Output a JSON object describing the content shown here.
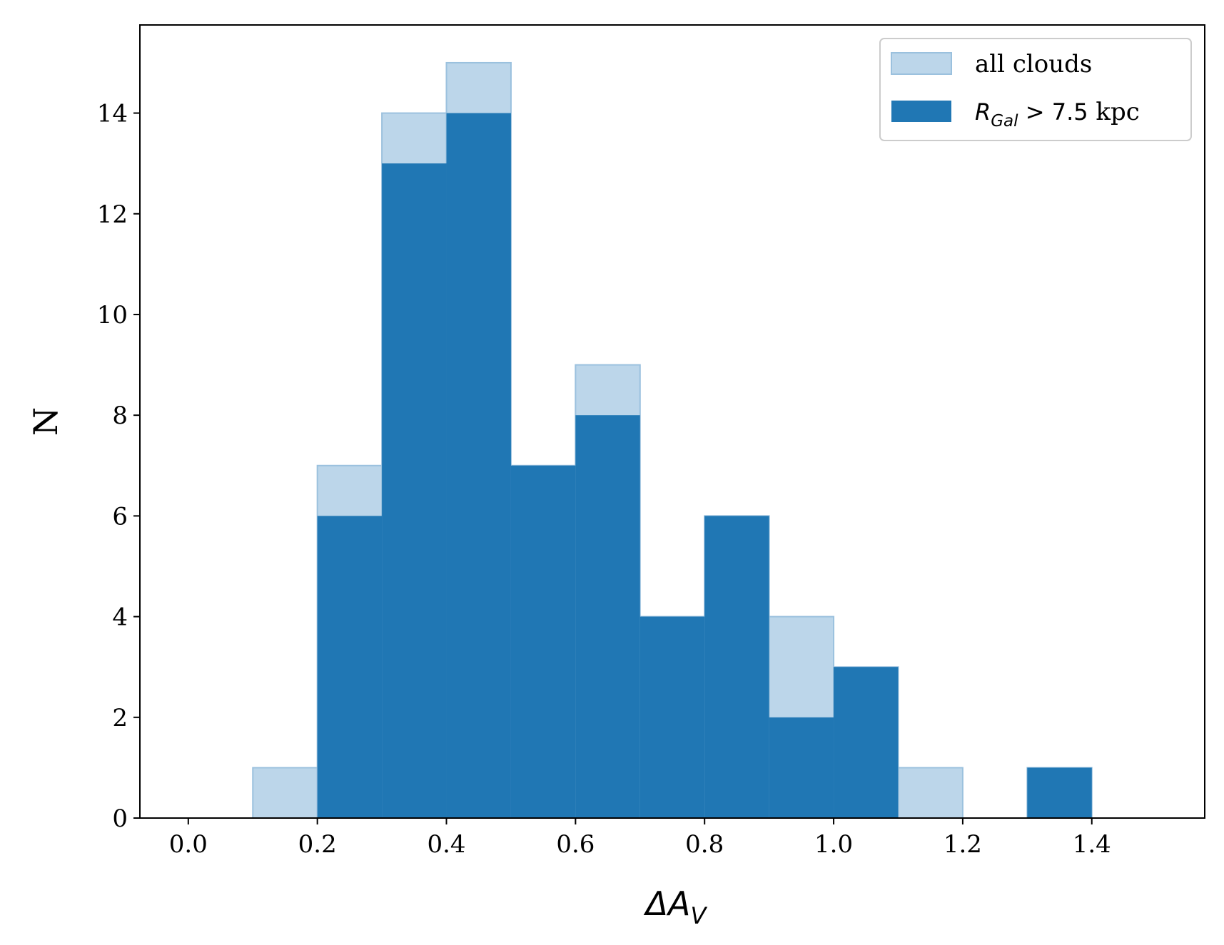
{
  "chart_data": {
    "type": "bar",
    "subtype": "histogram",
    "bin_edges": [
      0.0,
      0.1,
      0.2,
      0.3,
      0.4,
      0.5,
      0.6,
      0.7,
      0.8,
      0.9,
      1.0,
      1.1,
      1.2,
      1.3,
      1.4,
      1.5
    ],
    "series": [
      {
        "name": "all clouds",
        "color": "#bcd6ea",
        "edge_color": "#9bc1de",
        "values": [
          0,
          1,
          7,
          14,
          15,
          7,
          9,
          4,
          6,
          4,
          3,
          1,
          0,
          1,
          0
        ]
      },
      {
        "name_base": "R",
        "name_sub": "Gal",
        "name_rest": " > 7.5 kpc",
        "color": "#2077b4",
        "values": [
          0,
          0,
          6,
          13,
          14,
          7,
          8,
          4,
          6,
          2,
          3,
          0,
          0,
          1,
          0
        ]
      }
    ],
    "xlabel_base": "ΔA",
    "xlabel_sub": "V",
    "ylabel": "N",
    "xlim": [
      -0.075,
      1.575
    ],
    "ylim": [
      0,
      15.75
    ],
    "xticks": [
      "0.0",
      "0.2",
      "0.4",
      "0.6",
      "0.8",
      "1.0",
      "1.2",
      "1.4"
    ],
    "yticks": [
      "0",
      "2",
      "4",
      "6",
      "8",
      "10",
      "12",
      "14"
    ],
    "legend_position": "top-right",
    "grid": false
  }
}
